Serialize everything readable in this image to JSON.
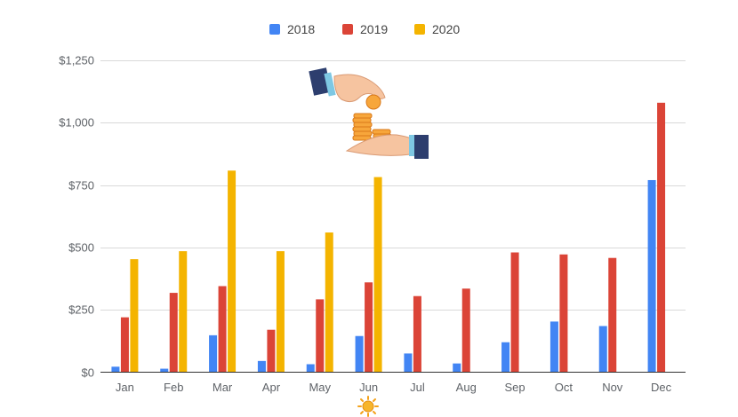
{
  "chart_data": {
    "type": "bar",
    "title": "",
    "xlabel": "",
    "ylabel": "",
    "categories": [
      "Jan",
      "Feb",
      "Mar",
      "Apr",
      "May",
      "Jun",
      "Jul",
      "Aug",
      "Sep",
      "Oct",
      "Nov",
      "Dec"
    ],
    "series": [
      {
        "name": "2018",
        "color": "#4285f4",
        "values": [
          22,
          14,
          148,
          45,
          32,
          145,
          75,
          35,
          120,
          203,
          185,
          770
        ]
      },
      {
        "name": "2019",
        "color": "#db4437",
        "values": [
          220,
          318,
          345,
          170,
          292,
          360,
          305,
          335,
          480,
          472,
          458,
          1080
        ]
      },
      {
        "name": "2020",
        "color": "#f4b400",
        "values": [
          453,
          485,
          808,
          485,
          560,
          782,
          null,
          null,
          null,
          null,
          null,
          null
        ]
      }
    ],
    "ylim": [
      0,
      1250
    ],
    "yticks": [
      0,
      250,
      500,
      750,
      1000,
      1250
    ],
    "ytick_labels": [
      "$0",
      "$250",
      "$500",
      "$750",
      "$1,000",
      "$1,250"
    ],
    "grid": true,
    "legend_position": "top-center",
    "decorations": [
      "hands-coins-icon",
      "sun-icon"
    ]
  }
}
